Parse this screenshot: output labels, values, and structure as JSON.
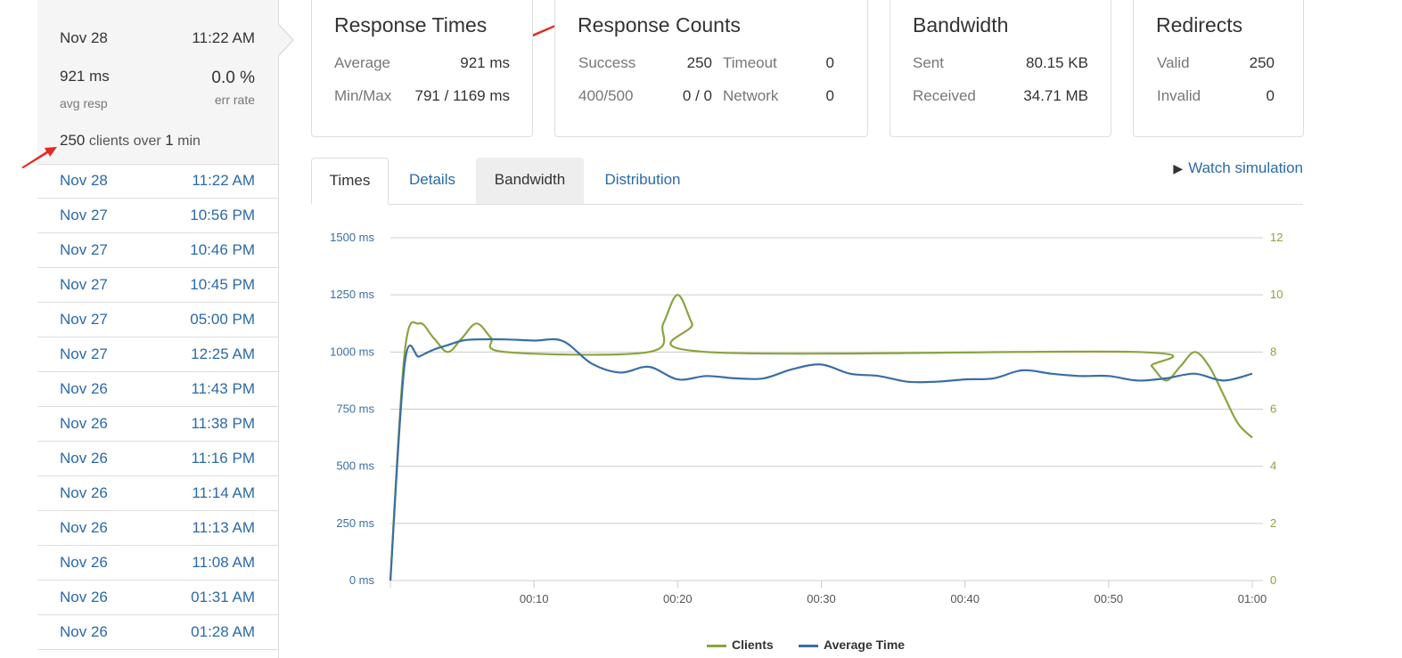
{
  "sidebar": {
    "selected": {
      "date": "Nov 28",
      "time": "11:22 AM",
      "avg_resp": "921 ms",
      "avg_resp_label": "avg resp",
      "err_rate": "0.0 %",
      "err_rate_label": "err rate",
      "clients_count": "250",
      "clients_mid": "clients over",
      "clients_dur": "1",
      "clients_unit": "min"
    },
    "runs": [
      {
        "date": "Nov 28",
        "time": "11:22 AM"
      },
      {
        "date": "Nov 27",
        "time": "10:56 PM"
      },
      {
        "date": "Nov 27",
        "time": "10:46 PM"
      },
      {
        "date": "Nov 27",
        "time": "10:45 PM"
      },
      {
        "date": "Nov 27",
        "time": "05:00 PM"
      },
      {
        "date": "Nov 27",
        "time": "12:25 AM"
      },
      {
        "date": "Nov 26",
        "time": "11:43 PM"
      },
      {
        "date": "Nov 26",
        "time": "11:38 PM"
      },
      {
        "date": "Nov 26",
        "time": "11:16 PM"
      },
      {
        "date": "Nov 26",
        "time": "11:14 AM"
      },
      {
        "date": "Nov 26",
        "time": "11:13 AM"
      },
      {
        "date": "Nov 26",
        "time": "11:08 AM"
      },
      {
        "date": "Nov 26",
        "time": "01:31 AM"
      },
      {
        "date": "Nov 26",
        "time": "01:28 AM"
      }
    ]
  },
  "cards": {
    "response_times": {
      "title": "Response Times",
      "average_label": "Average",
      "average_value": "921 ms",
      "minmax_label": "Min/Max",
      "minmax_value": "791 / 1169 ms"
    },
    "response_counts": {
      "title": "Response Counts",
      "success_label": "Success",
      "success_value": "250",
      "timeout_label": "Timeout",
      "timeout_value": "0",
      "err_label": "400/500",
      "err_value": "0 / 0",
      "network_label": "Network",
      "network_value": "0"
    },
    "bandwidth": {
      "title": "Bandwidth",
      "sent_label": "Sent",
      "sent_value": "80.15 KB",
      "received_label": "Received",
      "received_value": "34.71 MB"
    },
    "redirects": {
      "title": "Redirects",
      "valid_label": "Valid",
      "valid_value": "250",
      "invalid_label": "Invalid",
      "invalid_value": "0"
    }
  },
  "tabs": [
    {
      "label": "Times",
      "state": "active"
    },
    {
      "label": "Details",
      "state": "normal"
    },
    {
      "label": "Bandwidth",
      "state": "hover"
    },
    {
      "label": "Distribution",
      "state": "normal"
    }
  ],
  "watch_simulation": "Watch simulation",
  "colors": {
    "clients": "#8aa43f",
    "avg_time": "#3a6ea5",
    "annotation": "#e8281e"
  },
  "chart_data": {
    "type": "line",
    "x_ticks": [
      "00:10",
      "00:20",
      "00:30",
      "00:40",
      "00:50",
      "01:00"
    ],
    "y_left_ticks": [
      "0 ms",
      "250 ms",
      "500 ms",
      "750 ms",
      "1000 ms",
      "1250 ms",
      "1500 ms"
    ],
    "y_right_ticks": [
      "0",
      "2",
      "4",
      "6",
      "8",
      "10",
      "12"
    ],
    "ylim_left": [
      0,
      1500
    ],
    "ylim_right": [
      0,
      12
    ],
    "xlim_seconds": [
      0,
      60
    ],
    "grid": true,
    "legend_position": "bottom-center",
    "series": [
      {
        "name": "Clients",
        "axis": "right",
        "points": [
          [
            0,
            0
          ],
          [
            1,
            8
          ],
          [
            2,
            9
          ],
          [
            3,
            8.5
          ],
          [
            4,
            8
          ],
          [
            5,
            8.5
          ],
          [
            6,
            9
          ],
          [
            7,
            8.5
          ],
          [
            8,
            8
          ],
          [
            18,
            8
          ],
          [
            19,
            9
          ],
          [
            20,
            10
          ],
          [
            21,
            9
          ],
          [
            22,
            8
          ],
          [
            52,
            8
          ],
          [
            53,
            7.5
          ],
          [
            54,
            7
          ],
          [
            55,
            7.5
          ],
          [
            56,
            8
          ],
          [
            57,
            7.5
          ],
          [
            58,
            6.5
          ],
          [
            59,
            5.5
          ],
          [
            60,
            5
          ]
        ]
      },
      {
        "name": "Average Time",
        "axis": "left",
        "points": [
          [
            0,
            0
          ],
          [
            1,
            950
          ],
          [
            2,
            980
          ],
          [
            3,
            1010
          ],
          [
            4,
            1030
          ],
          [
            5,
            1050
          ],
          [
            6,
            1055
          ],
          [
            8,
            1055
          ],
          [
            10,
            1050
          ],
          [
            12,
            1048
          ],
          [
            14,
            950
          ],
          [
            16,
            910
          ],
          [
            18,
            935
          ],
          [
            20,
            880
          ],
          [
            22,
            895
          ],
          [
            24,
            885
          ],
          [
            26,
            885
          ],
          [
            28,
            925
          ],
          [
            30,
            945
          ],
          [
            32,
            905
          ],
          [
            34,
            895
          ],
          [
            36,
            870
          ],
          [
            38,
            870
          ],
          [
            40,
            880
          ],
          [
            42,
            885
          ],
          [
            44,
            920
          ],
          [
            46,
            905
          ],
          [
            48,
            895
          ],
          [
            50,
            895
          ],
          [
            52,
            875
          ],
          [
            54,
            885
          ],
          [
            56,
            905
          ],
          [
            58,
            875
          ],
          [
            60,
            905
          ]
        ]
      }
    ]
  }
}
